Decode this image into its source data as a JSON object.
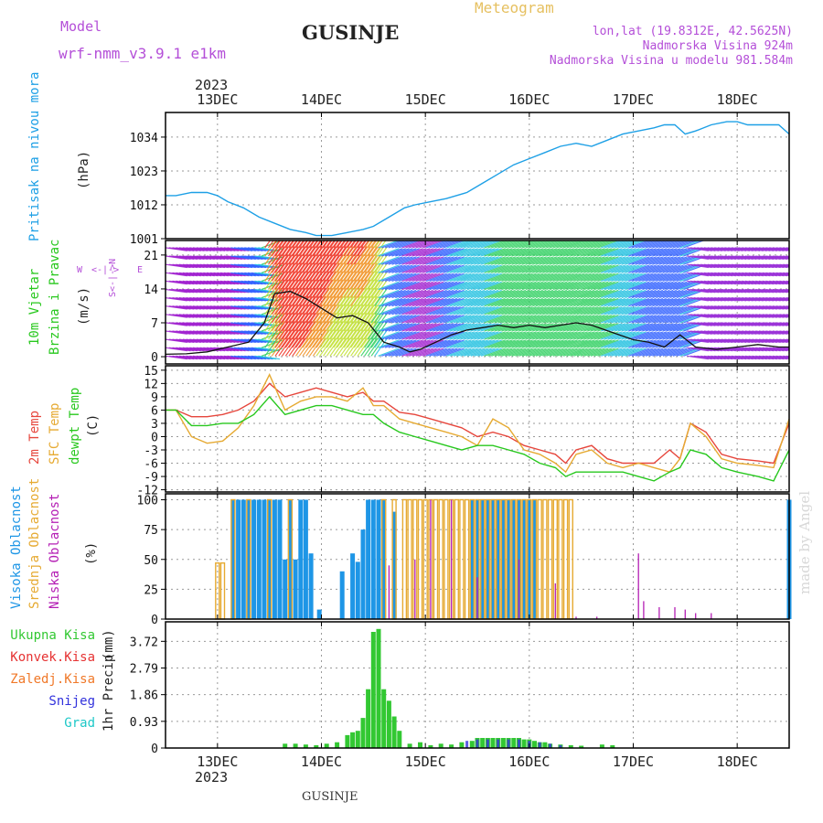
{
  "header": {
    "model_label": "Model",
    "model_name": "wrf-nmm_v3.9.1 e1km",
    "location": "GUSINJE",
    "product": "Meteogram",
    "lonlat": "lon,lat (19.8312E, 42.5625N)",
    "elevation": "Nadmorska Visina 924m",
    "model_elevation": "Nadmorska Visina u modelu 981.584m",
    "footer_location": "GUSINJE",
    "credit": "made by Angel"
  },
  "colors": {
    "pressure": "#1ea0e6",
    "temp2m": "#e6463c",
    "sfc_temp": "#e6aa32",
    "dewpoint": "#28c81e",
    "high_cloud": "#1e96e6",
    "mid_cloud": "#e6aa32",
    "low_cloud": "#b41eb4",
    "total_precip": "#32c832",
    "conv_precip": "#e63232",
    "frz_precip": "#f07828",
    "snow": "#3232dc",
    "hail": "#1ec8c8",
    "title_purple": "#b44fd8",
    "title_gold": "#e6c060"
  },
  "time_axis": {
    "year": "2023",
    "ticks": [
      "13DEC",
      "14DEC",
      "15DEC",
      "16DEC",
      "17DEC",
      "18DEC"
    ],
    "start_day": 12.5,
    "end_day": 18.5
  },
  "chart_data": [
    {
      "type": "line",
      "panel": "pressure",
      "ylabel_main": "Pritisak na nivou mora",
      "ylabel_unit": "(hPa)",
      "yticks": [
        1001,
        1012,
        1023,
        1034
      ],
      "ylim": [
        1001,
        1042
      ],
      "grid": true,
      "series": [
        {
          "x": [
            12.5,
            12.6,
            12.75,
            12.9,
            13.0,
            13.1,
            13.25,
            13.4,
            13.55,
            13.7,
            13.85,
            13.95,
            14.1,
            14.25,
            14.4,
            14.5,
            14.65,
            14.8,
            14.9,
            15.05,
            15.2,
            15.4,
            15.55,
            15.7,
            15.85,
            16.0,
            16.15,
            16.3,
            16.45,
            16.6,
            16.75,
            16.9,
            17.05,
            17.2,
            17.3,
            17.4,
            17.5,
            17.6,
            17.75,
            17.9,
            18.0,
            18.1,
            18.25,
            18.4,
            18.5
          ],
          "y": [
            1015,
            1015,
            1016,
            1016,
            1015,
            1013,
            1011,
            1008,
            1006,
            1004,
            1003,
            1002,
            1002,
            1003,
            1004,
            1005,
            1008,
            1011,
            1012,
            1013,
            1014,
            1016,
            1019,
            1022,
            1025,
            1027,
            1029,
            1031,
            1032,
            1031,
            1033,
            1035,
            1036,
            1037,
            1038,
            1038,
            1035,
            1036,
            1038,
            1039,
            1039,
            1038,
            1038,
            1038,
            1035
          ]
        }
      ]
    },
    {
      "type": "line+barbs",
      "panel": "wind",
      "ylabel_main": "10m Vjetar",
      "ylabel_sub": "Brzina i Pravac",
      "ylabel_unit": "(m/s)",
      "compass": [
        "W",
        "<-|->",
        "E",
        "N",
        "^",
        "|",
        "v",
        "S"
      ],
      "yticks": [
        0,
        7,
        14,
        21
      ],
      "ylim": [
        -1.5,
        24
      ],
      "grid": true,
      "series": [
        {
          "name": "speed",
          "x": [
            12.5,
            12.7,
            12.9,
            13.1,
            13.3,
            13.45,
            13.55,
            13.7,
            13.85,
            14.0,
            14.15,
            14.3,
            14.45,
            14.6,
            14.75,
            14.85,
            14.95,
            15.1,
            15.25,
            15.4,
            15.55,
            15.7,
            15.85,
            16.0,
            16.15,
            16.3,
            16.45,
            16.6,
            16.8,
            17.0,
            17.15,
            17.3,
            17.45,
            17.6,
            17.8,
            18.0,
            18.2,
            18.4,
            18.5
          ],
          "y": [
            0.5,
            0.6,
            1.0,
            2.0,
            3.0,
            7.0,
            13.0,
            13.5,
            12.0,
            10.0,
            8.0,
            8.5,
            7.0,
            3.0,
            2.0,
            1.0,
            1.5,
            3.0,
            4.5,
            5.5,
            6.0,
            6.5,
            6.0,
            6.5,
            6.0,
            6.5,
            7.0,
            6.5,
            5.0,
            3.5,
            3.0,
            2.0,
            4.5,
            2.0,
            1.5,
            2.0,
            2.5,
            2.0,
            2.0
          ]
        }
      ]
    },
    {
      "type": "line",
      "panel": "temperature",
      "ylabel_lines": [
        "2m Temp",
        "SFC Temp",
        "dewpt Temp"
      ],
      "ylabel_unit": "(C)",
      "yticks": [
        15,
        12,
        9,
        6,
        3,
        0,
        -3,
        -6,
        -9,
        -12
      ],
      "ylim": [
        -12.5,
        16
      ],
      "grid": true,
      "x": [
        12.5,
        12.6,
        12.75,
        12.9,
        13.05,
        13.2,
        13.35,
        13.5,
        13.65,
        13.8,
        13.95,
        14.1,
        14.25,
        14.4,
        14.5,
        14.6,
        14.75,
        14.9,
        15.05,
        15.2,
        15.35,
        15.5,
        15.65,
        15.8,
        15.95,
        16.1,
        16.25,
        16.35,
        16.45,
        16.6,
        16.75,
        16.9,
        17.05,
        17.2,
        17.35,
        17.45,
        17.55,
        17.7,
        17.85,
        18.0,
        18.2,
        18.35,
        18.5
      ],
      "series": [
        {
          "name": "2m Temp",
          "values": [
            6,
            6,
            4.5,
            4.5,
            5,
            6,
            8,
            12,
            9,
            10,
            11,
            10,
            9,
            10,
            8,
            8,
            5.5,
            5,
            4,
            3,
            2,
            0,
            1,
            0,
            -2,
            -3,
            -4,
            -6,
            -3,
            -2,
            -5,
            -6,
            -6,
            -6,
            -3,
            -5,
            3,
            1,
            -4,
            -5,
            -5.5,
            -6,
            3
          ]
        },
        {
          "name": "SFC Temp",
          "values": [
            6,
            6,
            0,
            -1.5,
            -1,
            2,
            7,
            14,
            6,
            8,
            9,
            9,
            8,
            11,
            7,
            7,
            4,
            3,
            2,
            1,
            0,
            -2,
            4,
            2,
            -3,
            -4,
            -6,
            -8,
            -4,
            -3,
            -6,
            -7,
            -6,
            -7,
            -8,
            -5,
            3,
            0,
            -5,
            -6,
            -6.5,
            -7,
            4
          ]
        },
        {
          "name": "dewpt Temp",
          "values": [
            6,
            6,
            2.5,
            2.5,
            3,
            3,
            5,
            9,
            5,
            6,
            7,
            7,
            6,
            5,
            5,
            3,
            1,
            0,
            -1,
            -2,
            -3,
            -2,
            -2,
            -3,
            -4,
            -6,
            -7,
            -9,
            -8,
            -8,
            -8,
            -8,
            -9,
            -10,
            -8,
            -7,
            -3,
            -4,
            -7,
            -8,
            -9,
            -10,
            -3
          ]
        }
      ]
    },
    {
      "type": "bar",
      "panel": "cloud",
      "ylabel_lines": [
        "Visoka Oblacnost",
        "Srednja Oblacnost",
        "Niska Oblacnost"
      ],
      "ylabel_unit": "(%)",
      "yticks": [
        0,
        25,
        50,
        75,
        100
      ],
      "ylim": [
        0,
        105
      ],
      "grid": true,
      "series": [
        {
          "name": "Visoka Oblacnost",
          "x": [
            13.15,
            13.2,
            13.25,
            13.3,
            13.35,
            13.4,
            13.45,
            13.5,
            13.55,
            13.6,
            13.65,
            13.7,
            13.75,
            13.8,
            13.85,
            13.9,
            13.98,
            14.2,
            14.3,
            14.35,
            14.4,
            14.45,
            14.5,
            14.55,
            14.6,
            14.7,
            15.45,
            15.5,
            15.55,
            15.6,
            15.65,
            15.7,
            15.75,
            15.8,
            15.85,
            15.9,
            15.95,
            16.0,
            16.05,
            18.5
          ],
          "values": [
            100,
            100,
            100,
            100,
            100,
            100,
            100,
            100,
            100,
            100,
            50,
            100,
            50,
            100,
            100,
            55,
            8,
            40,
            55,
            48,
            75,
            100,
            100,
            100,
            100,
            90,
            100,
            100,
            100,
            100,
            100,
            100,
            100,
            100,
            100,
            100,
            100,
            100,
            100,
            100
          ]
        },
        {
          "name": "Srednja Oblacnost",
          "x": [
            12.5,
            13.0,
            13.05,
            13.15,
            13.3,
            13.5,
            13.7,
            14.6,
            14.7,
            14.8,
            14.85,
            14.9,
            14.95,
            15.0,
            15.05,
            15.1,
            15.15,
            15.2,
            15.25,
            15.3,
            15.35,
            15.4,
            15.45,
            15.5,
            15.55,
            15.6,
            15.65,
            15.7,
            15.75,
            15.8,
            15.85,
            15.9,
            15.95,
            16.0,
            16.05,
            16.1,
            16.15,
            16.2,
            16.25,
            16.3,
            16.35,
            16.4
          ],
          "values": [
            0,
            47,
            47,
            100,
            100,
            100,
            100,
            100,
            100,
            100,
            100,
            100,
            100,
            100,
            100,
            100,
            100,
            100,
            100,
            100,
            100,
            100,
            100,
            100,
            100,
            100,
            100,
            100,
            100,
            100,
            100,
            100,
            100,
            100,
            100,
            100,
            100,
            100,
            100,
            100,
            100,
            100
          ]
        },
        {
          "name": "Niska Oblacnost",
          "x": [
            14.65,
            14.9,
            15.05,
            15.25,
            15.5,
            15.9,
            16.25,
            16.45,
            16.65,
            17.05,
            17.1,
            17.25,
            17.4,
            17.5,
            17.6,
            17.75
          ],
          "values": [
            45,
            50,
            100,
            100,
            35,
            50,
            30,
            2,
            2,
            55,
            15,
            10,
            10,
            8,
            5,
            5
          ]
        }
      ]
    },
    {
      "type": "bar",
      "panel": "precip",
      "legend": [
        "Ukupna Kisa",
        "Konvek.Kisa",
        "Zaledj.Kisa",
        "Snijeg",
        "Grad"
      ],
      "ylabel_main": "1hr Precip",
      "ylabel_unit": "(mm)",
      "yticks": [
        0,
        0.93,
        1.86,
        2.79,
        3.72
      ],
      "ylim": [
        0,
        4.4
      ],
      "grid": true,
      "series": [
        {
          "name": "Ukupna Kisa",
          "x": [
            13.65,
            13.75,
            13.85,
            13.95,
            14.05,
            14.15,
            14.25,
            14.3,
            14.35,
            14.4,
            14.45,
            14.5,
            14.55,
            14.6,
            14.65,
            14.7,
            14.75,
            14.85,
            14.95,
            15.05,
            15.15,
            15.25,
            15.35,
            15.45,
            15.5,
            15.55,
            15.6,
            15.65,
            15.7,
            15.75,
            15.8,
            15.85,
            15.9,
            15.95,
            16.0,
            16.05,
            16.1,
            16.15,
            16.2,
            16.3,
            16.4,
            16.5,
            16.7,
            16.8
          ],
          "values": [
            0.15,
            0.15,
            0.12,
            0.1,
            0.15,
            0.2,
            0.45,
            0.55,
            0.6,
            1.05,
            2.05,
            4.05,
            4.15,
            2.05,
            1.65,
            1.1,
            0.6,
            0.15,
            0.2,
            0.1,
            0.15,
            0.12,
            0.2,
            0.25,
            0.35,
            0.35,
            0.35,
            0.35,
            0.35,
            0.35,
            0.35,
            0.35,
            0.35,
            0.3,
            0.3,
            0.25,
            0.2,
            0.2,
            0.15,
            0.12,
            0.1,
            0.08,
            0.12,
            0.1
          ]
        },
        {
          "name": "Snijeg",
          "x": [
            15.4,
            15.5,
            15.6,
            15.7,
            15.8,
            15.9,
            16.0,
            16.1,
            16.2,
            16.3
          ],
          "values": [
            0.25,
            0.3,
            0.3,
            0.3,
            0.3,
            0.3,
            0.25,
            0.2,
            0.15,
            0.1
          ]
        }
      ]
    }
  ]
}
